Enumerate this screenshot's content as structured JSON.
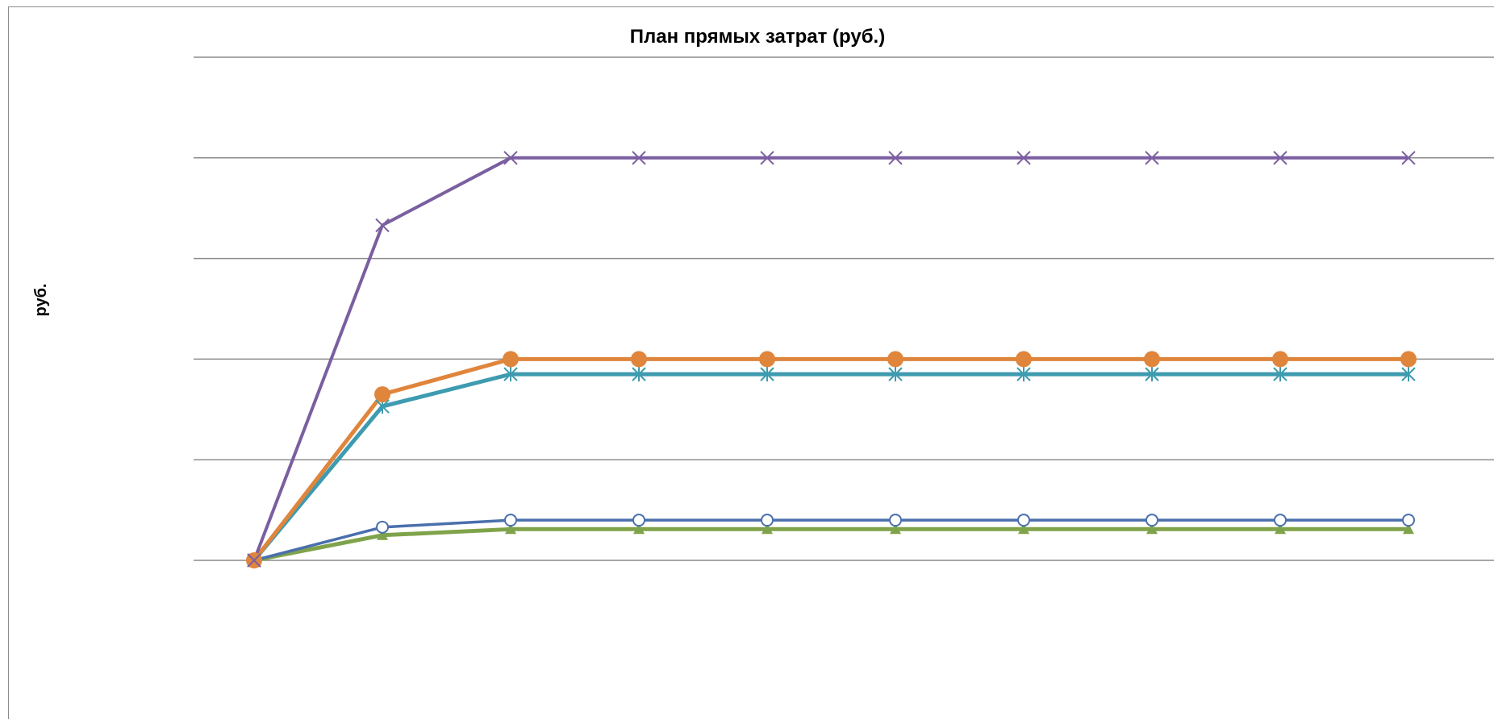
{
  "chart_data": {
    "type": "line",
    "title": "План прямых затрат (руб.)",
    "xlabel": "",
    "ylabel": "руб.",
    "ylim": [
      0,
      5
    ],
    "gridlines": [
      0,
      1,
      2,
      3,
      4,
      5
    ],
    "grid": true,
    "legend": "none",
    "x": [
      1,
      2,
      3,
      4,
      5,
      6,
      7,
      8,
      9,
      10
    ],
    "series": [
      {
        "color": "#7a5fa0",
        "marker": "x-icon",
        "values": [
          0,
          3.33,
          4,
          4,
          4,
          4,
          4,
          4,
          4,
          4
        ]
      },
      {
        "color": "#e0853c",
        "marker": "filled-circle-icon",
        "values": [
          0,
          1.65,
          2,
          2,
          2,
          2,
          2,
          2,
          2,
          2
        ]
      },
      {
        "color": "#3e9bb0",
        "marker": "asterisk-icon",
        "values": [
          0,
          1.53,
          1.85,
          1.85,
          1.85,
          1.85,
          1.85,
          1.85,
          1.85,
          1.85
        ]
      },
      {
        "color": "#4a6fad",
        "marker": "hollow-circle-icon",
        "values": [
          0,
          0.33,
          0.4,
          0.4,
          0.4,
          0.4,
          0.4,
          0.4,
          0.4,
          0.4
        ]
      },
      {
        "color": "#7fa34a",
        "marker": "triangle-icon",
        "values": [
          0,
          0.25,
          0.31,
          0.31,
          0.31,
          0.31,
          0.31,
          0.31,
          0.31,
          0.31
        ]
      }
    ]
  }
}
